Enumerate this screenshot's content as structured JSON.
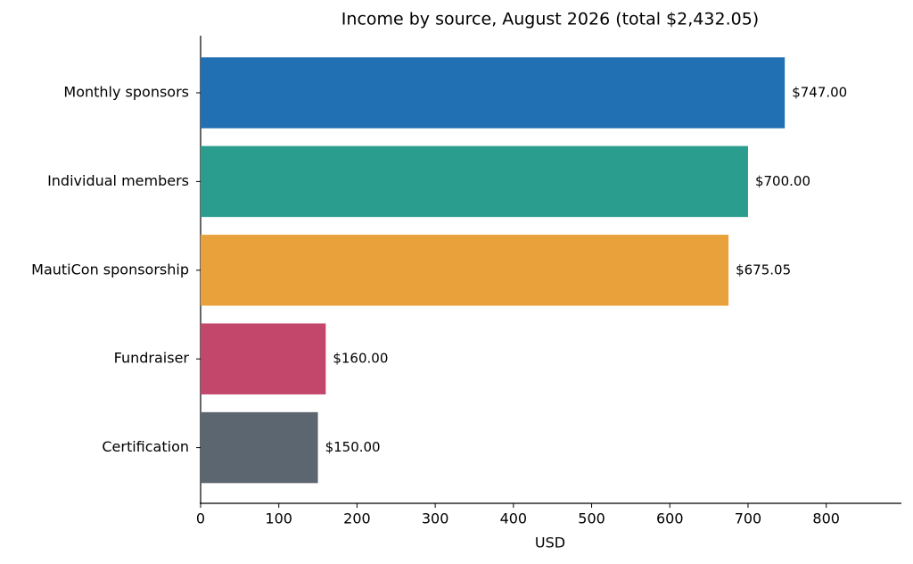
{
  "chart_data": {
    "type": "hbar",
    "title": "Income by source, August 2026 (total $2,432.05)",
    "xlabel": "USD",
    "categories": [
      "Monthly sponsors",
      "Individual members",
      "MautiCon sponsorship",
      "Fundraiser",
      "Certification"
    ],
    "values": [
      747,
      700,
      675.05,
      160,
      150
    ],
    "value_labels": [
      "$747.00",
      "$700.00",
      "$675.05",
      "$160.00",
      "$150.00"
    ],
    "colors": [
      "#2170b3",
      "#2a9d8f",
      "#e9a23b",
      "#c2476b",
      "#5c6670"
    ],
    "xlim": [
      0,
      895
    ],
    "xticks": [
      0,
      100,
      200,
      300,
      400,
      500,
      600,
      700,
      800
    ],
    "grid": false
  }
}
